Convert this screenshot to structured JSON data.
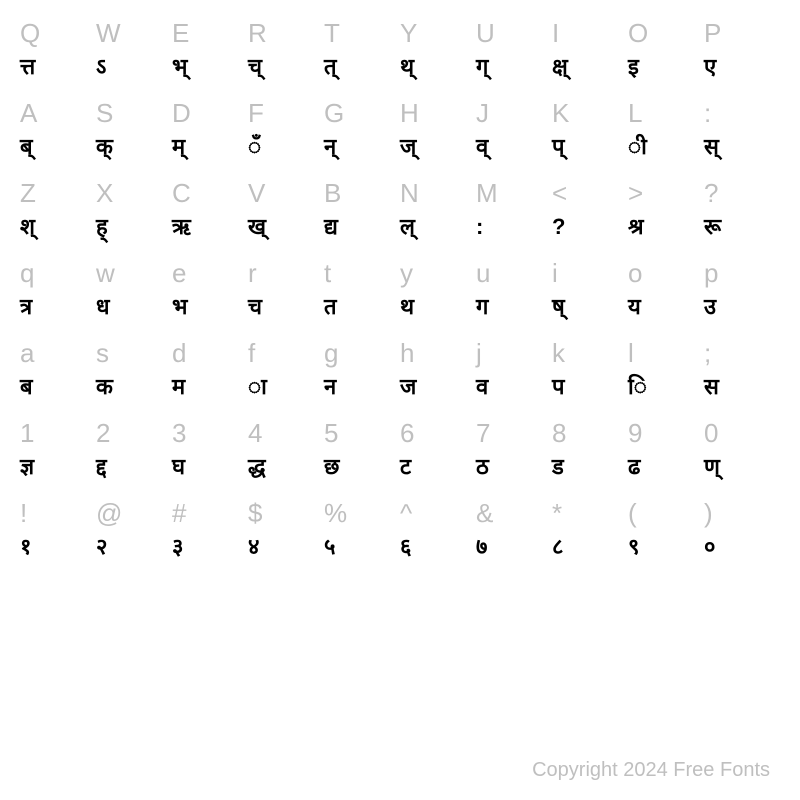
{
  "grid": {
    "columns": 10,
    "rows": 8,
    "latin_color": "#bfbfbf",
    "glyph_color": "#000000",
    "background_color": "#ffffff",
    "latin_fontsize": 26,
    "glyph_fontsize": 22,
    "cells": [
      {
        "latin": "Q",
        "glyph": "त्त"
      },
      {
        "latin": "W",
        "glyph": "ऽ"
      },
      {
        "latin": "E",
        "glyph": "भ्"
      },
      {
        "latin": "R",
        "glyph": "च्"
      },
      {
        "latin": "T",
        "glyph": "त्"
      },
      {
        "latin": "Y",
        "glyph": "थ्"
      },
      {
        "latin": "U",
        "glyph": "ग्"
      },
      {
        "latin": "I",
        "glyph": "क्ष्"
      },
      {
        "latin": "O",
        "glyph": "इ"
      },
      {
        "latin": "P",
        "glyph": "ए"
      },
      {
        "latin": "A",
        "glyph": "ब्"
      },
      {
        "latin": "S",
        "glyph": "क्"
      },
      {
        "latin": "D",
        "glyph": "म्"
      },
      {
        "latin": "F",
        "glyph": "ँ"
      },
      {
        "latin": "G",
        "glyph": "न्"
      },
      {
        "latin": "H",
        "glyph": "ज्"
      },
      {
        "latin": "J",
        "glyph": "व्"
      },
      {
        "latin": "K",
        "glyph": "प्"
      },
      {
        "latin": "L",
        "glyph": "ी"
      },
      {
        "latin": ":",
        "glyph": "स्"
      },
      {
        "latin": "Z",
        "glyph": "श्"
      },
      {
        "latin": "X",
        "glyph": "ह्"
      },
      {
        "latin": "C",
        "glyph": "ऋ"
      },
      {
        "latin": "V",
        "glyph": "ख्"
      },
      {
        "latin": "B",
        "glyph": "द्य"
      },
      {
        "latin": "N",
        "glyph": "ल्"
      },
      {
        "latin": "M",
        "glyph": ":"
      },
      {
        "latin": "<",
        "glyph": "?"
      },
      {
        "latin": ">",
        "glyph": "श्र"
      },
      {
        "latin": "?",
        "glyph": "रू"
      },
      {
        "latin": "q",
        "glyph": "त्र"
      },
      {
        "latin": "w",
        "glyph": "ध"
      },
      {
        "latin": "e",
        "glyph": "भ"
      },
      {
        "latin": "r",
        "glyph": "च"
      },
      {
        "latin": "t",
        "glyph": "त"
      },
      {
        "latin": "y",
        "glyph": "थ"
      },
      {
        "latin": "u",
        "glyph": "ग"
      },
      {
        "latin": "i",
        "glyph": "ष्"
      },
      {
        "latin": "o",
        "glyph": "य"
      },
      {
        "latin": "p",
        "glyph": "उ"
      },
      {
        "latin": "a",
        "glyph": "ब"
      },
      {
        "latin": "s",
        "glyph": "क"
      },
      {
        "latin": "d",
        "glyph": "म"
      },
      {
        "latin": "f",
        "glyph": "ा"
      },
      {
        "latin": "g",
        "glyph": "न"
      },
      {
        "latin": "h",
        "glyph": "ज"
      },
      {
        "latin": "j",
        "glyph": "व"
      },
      {
        "latin": "k",
        "glyph": "प"
      },
      {
        "latin": "l",
        "glyph": "ि"
      },
      {
        "latin": ";",
        "glyph": "स"
      },
      {
        "latin": "1",
        "glyph": "ज्ञ"
      },
      {
        "latin": "2",
        "glyph": "द्द"
      },
      {
        "latin": "3",
        "glyph": "घ"
      },
      {
        "latin": "4",
        "glyph": "द्ध"
      },
      {
        "latin": "5",
        "glyph": "छ"
      },
      {
        "latin": "6",
        "glyph": "ट"
      },
      {
        "latin": "7",
        "glyph": "ठ"
      },
      {
        "latin": "8",
        "glyph": "ड"
      },
      {
        "latin": "9",
        "glyph": "ढ"
      },
      {
        "latin": "0",
        "glyph": "ण्"
      },
      {
        "latin": "!",
        "glyph": "१"
      },
      {
        "latin": "@",
        "glyph": "२"
      },
      {
        "latin": "#",
        "glyph": "३"
      },
      {
        "latin": "$",
        "glyph": "४"
      },
      {
        "latin": "%",
        "glyph": "५"
      },
      {
        "latin": "^",
        "glyph": "६"
      },
      {
        "latin": "&",
        "glyph": "७"
      },
      {
        "latin": "*",
        "glyph": "८"
      },
      {
        "latin": "(",
        "glyph": "९"
      },
      {
        "latin": ")",
        "glyph": "०"
      }
    ]
  },
  "copyright": "Copyright 2024 Free Fonts"
}
